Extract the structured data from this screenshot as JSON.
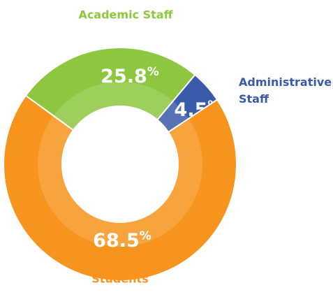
{
  "chart_data": {
    "type": "donut",
    "categories": [
      "Academic Staff",
      "Administrative Staff",
      "Students"
    ],
    "values": [
      25.8,
      4.5,
      68.5
    ],
    "value_labels": [
      "25.8%",
      "4.5%",
      "68.5%"
    ],
    "colors": [
      "#8dc63f",
      "#3a5ba9",
      "#f7941d"
    ]
  }
}
